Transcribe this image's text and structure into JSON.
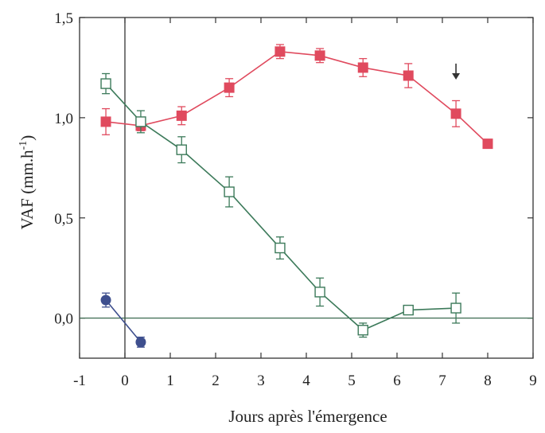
{
  "chart_data": {
    "type": "line",
    "title": "",
    "xlabel": "Jours après l'émergence",
    "ylabel_text": "VAF (mm.h",
    "ylabel_sup": "-1",
    "ylabel_close": ")",
    "xlim": [
      -1,
      9
    ],
    "ylim": [
      -0.2,
      1.5
    ],
    "x_ticks": [
      -1,
      0,
      1,
      2,
      3,
      4,
      5,
      6,
      7,
      8,
      9
    ],
    "x_tick_labels": [
      "-1",
      "0",
      "1",
      "2",
      "3",
      "4",
      "5",
      "6",
      "7",
      "8",
      "9"
    ],
    "y_ticks": [
      0,
      0.5,
      1.0,
      1.5
    ],
    "y_tick_labels": [
      "0,0",
      "0,5",
      "1,0",
      "1,5"
    ],
    "reference_lines": {
      "x": 0,
      "y": 0
    },
    "arrow": {
      "x": 7.3,
      "y_from": 1.27,
      "y_to": 1.19
    },
    "series": [
      {
        "marker": "filled-square",
        "color": "#e04a5e",
        "x": [
          -0.42,
          0.35,
          1.25,
          2.3,
          3.42,
          4.3,
          5.25,
          6.25,
          7.3,
          8.0
        ],
        "y": [
          0.98,
          0.96,
          1.01,
          1.15,
          1.33,
          1.31,
          1.25,
          1.21,
          1.02,
          0.87
        ],
        "err": [
          0.065,
          0.025,
          0.045,
          0.045,
          0.035,
          0.035,
          0.045,
          0.06,
          0.065,
          0.0
        ]
      },
      {
        "marker": "open-square",
        "color": "#3c7a5a",
        "x": [
          -0.42,
          0.35,
          1.25,
          2.3,
          3.42,
          4.3,
          5.25,
          6.25,
          7.3
        ],
        "y": [
          1.17,
          0.98,
          0.84,
          0.63,
          0.35,
          0.13,
          -0.06,
          0.04,
          0.05
        ],
        "err": [
          0.05,
          0.055,
          0.065,
          0.075,
          0.055,
          0.07,
          0.035,
          0.0,
          0.075
        ]
      },
      {
        "marker": "filled-circle",
        "color": "#3e4f8e",
        "x": [
          -0.42,
          0.35
        ],
        "y": [
          0.09,
          -0.12
        ],
        "err": [
          0.035,
          0.025
        ]
      }
    ]
  }
}
